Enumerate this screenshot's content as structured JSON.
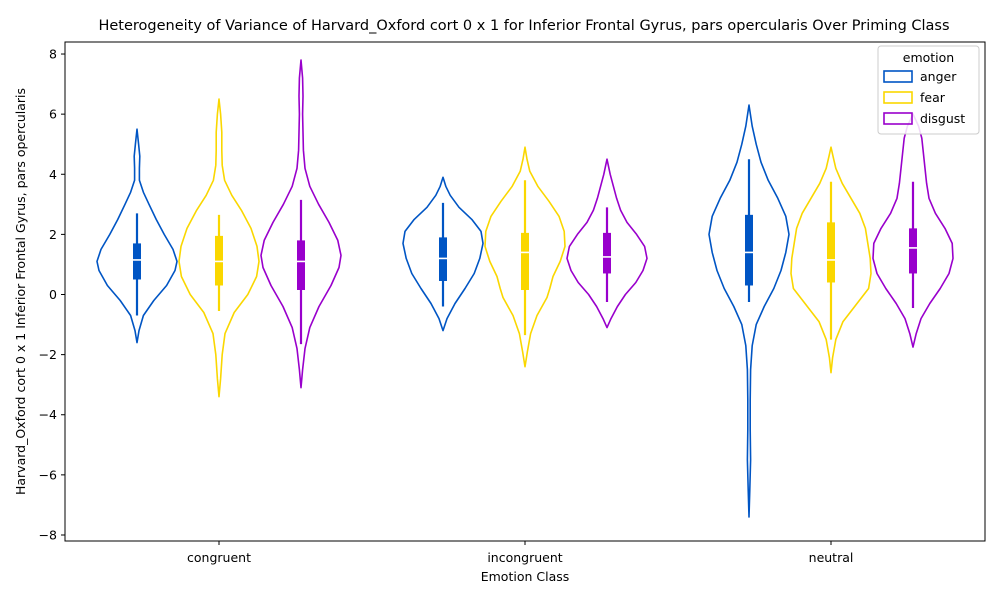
{
  "chart_data": {
    "type": "violin",
    "title": "Heterogeneity of Variance of Harvard_Oxford cort 0 x 1 for Inferior Frontal Gyrus, pars opercularis Over Priming Class",
    "xlabel": "Emotion Class",
    "ylabel": "Harvard_Oxford cort 0 x 1 Inferior Frontal Gyrus, pars opercularis",
    "ylim": [
      -8.2,
      8.4
    ],
    "yticks": [
      -8,
      -6,
      -4,
      -2,
      0,
      2,
      4,
      6,
      8
    ],
    "ytick_labels": [
      "−8",
      "−6",
      "−4",
      "−2",
      "0",
      "2",
      "4",
      "6",
      "8"
    ],
    "categories": [
      "congruent",
      "incongruent",
      "neutral"
    ],
    "legend": {
      "title": "emotion",
      "position": "top-right"
    },
    "grid": false,
    "series": [
      {
        "name": "anger",
        "color": "#0055c4",
        "violins": [
          {
            "min": -1.6,
            "max": 5.5,
            "q1": 0.5,
            "median": 1.15,
            "q3": 1.7,
            "whisker_low": -0.7,
            "whisker_high": 2.7,
            "profile": [
              [
                -1.6,
                0.0
              ],
              [
                -1.2,
                0.05
              ],
              [
                -0.7,
                0.16
              ],
              [
                -0.2,
                0.42
              ],
              [
                0.3,
                0.74
              ],
              [
                0.8,
                0.95
              ],
              [
                1.1,
                1.0
              ],
              [
                1.5,
                0.9
              ],
              [
                2.0,
                0.68
              ],
              [
                2.5,
                0.48
              ],
              [
                3.0,
                0.3
              ],
              [
                3.4,
                0.16
              ],
              [
                3.8,
                0.06
              ],
              [
                4.2,
                0.06
              ],
              [
                4.6,
                0.07
              ],
              [
                5.0,
                0.04
              ],
              [
                5.5,
                0.0
              ]
            ]
          },
          {
            "min": -1.2,
            "max": 3.9,
            "q1": 0.45,
            "median": 1.2,
            "q3": 1.9,
            "whisker_low": -0.4,
            "whisker_high": 3.05,
            "profile": [
              [
                -1.2,
                0.0
              ],
              [
                -0.8,
                0.1
              ],
              [
                -0.3,
                0.3
              ],
              [
                0.2,
                0.55
              ],
              [
                0.7,
                0.78
              ],
              [
                1.2,
                0.92
              ],
              [
                1.7,
                1.0
              ],
              [
                2.1,
                0.95
              ],
              [
                2.5,
                0.72
              ],
              [
                2.9,
                0.4
              ],
              [
                3.3,
                0.18
              ],
              [
                3.6,
                0.07
              ],
              [
                3.9,
                0.0
              ]
            ]
          },
          {
            "min": -7.4,
            "max": 6.3,
            "q1": 0.3,
            "median": 1.4,
            "q3": 2.65,
            "whisker_low": -0.25,
            "whisker_high": 4.5,
            "profile": [
              [
                -7.4,
                0.0
              ],
              [
                -6.5,
                0.02
              ],
              [
                -5.5,
                0.04
              ],
              [
                -4.5,
                0.03
              ],
              [
                -3.5,
                0.03
              ],
              [
                -2.5,
                0.04
              ],
              [
                -1.7,
                0.08
              ],
              [
                -1.0,
                0.18
              ],
              [
                -0.4,
                0.38
              ],
              [
                0.2,
                0.62
              ],
              [
                0.8,
                0.8
              ],
              [
                1.4,
                0.92
              ],
              [
                2.0,
                1.0
              ],
              [
                2.6,
                0.92
              ],
              [
                3.2,
                0.72
              ],
              [
                3.8,
                0.48
              ],
              [
                4.4,
                0.3
              ],
              [
                5.0,
                0.18
              ],
              [
                5.6,
                0.08
              ],
              [
                6.3,
                0.0
              ]
            ]
          }
        ]
      },
      {
        "name": "fear",
        "color": "#fad700",
        "violins": [
          {
            "min": -3.4,
            "max": 6.5,
            "q1": 0.3,
            "median": 1.1,
            "q3": 1.95,
            "whisker_low": -0.55,
            "whisker_high": 2.65,
            "profile": [
              [
                -3.4,
                0.0
              ],
              [
                -2.8,
                0.04
              ],
              [
                -2.0,
                0.08
              ],
              [
                -1.3,
                0.15
              ],
              [
                -0.6,
                0.38
              ],
              [
                0.0,
                0.72
              ],
              [
                0.6,
                0.94
              ],
              [
                1.1,
                1.0
              ],
              [
                1.6,
                0.95
              ],
              [
                2.2,
                0.8
              ],
              [
                2.8,
                0.56
              ],
              [
                3.3,
                0.32
              ],
              [
                3.8,
                0.14
              ],
              [
                4.3,
                0.08
              ],
              [
                4.8,
                0.07
              ],
              [
                5.4,
                0.07
              ],
              [
                6.0,
                0.04
              ],
              [
                6.5,
                0.0
              ]
            ]
          },
          {
            "min": -2.4,
            "max": 4.9,
            "q1": 0.15,
            "median": 1.4,
            "q3": 2.05,
            "whisker_low": -1.35,
            "whisker_high": 3.8,
            "profile": [
              [
                -2.4,
                0.0
              ],
              [
                -1.9,
                0.06
              ],
              [
                -1.3,
                0.14
              ],
              [
                -0.7,
                0.3
              ],
              [
                -0.1,
                0.55
              ],
              [
                0.2,
                0.62
              ],
              [
                0.6,
                0.7
              ],
              [
                1.1,
                0.88
              ],
              [
                1.6,
                1.0
              ],
              [
                2.1,
                0.98
              ],
              [
                2.6,
                0.85
              ],
              [
                3.1,
                0.6
              ],
              [
                3.6,
                0.32
              ],
              [
                4.1,
                0.12
              ],
              [
                4.5,
                0.05
              ],
              [
                4.9,
                0.0
              ]
            ]
          },
          {
            "min": -2.6,
            "max": 4.9,
            "q1": 0.4,
            "median": 1.15,
            "q3": 2.4,
            "whisker_low": -1.5,
            "whisker_high": 3.75,
            "profile": [
              [
                -2.6,
                0.0
              ],
              [
                -2.1,
                0.04
              ],
              [
                -1.5,
                0.12
              ],
              [
                -0.9,
                0.3
              ],
              [
                -0.3,
                0.65
              ],
              [
                0.2,
                0.94
              ],
              [
                0.7,
                1.0
              ],
              [
                1.2,
                0.98
              ],
              [
                1.7,
                0.92
              ],
              [
                2.2,
                0.86
              ],
              [
                2.7,
                0.72
              ],
              [
                3.2,
                0.5
              ],
              [
                3.7,
                0.28
              ],
              [
                4.2,
                0.12
              ],
              [
                4.6,
                0.05
              ],
              [
                4.9,
                0.0
              ]
            ]
          }
        ]
      },
      {
        "name": "disgust",
        "color": "#9900cc",
        "violins": [
          {
            "min": -3.1,
            "max": 7.8,
            "q1": 0.15,
            "median": 1.1,
            "q3": 1.8,
            "whisker_low": -1.65,
            "whisker_high": 3.15,
            "profile": [
              [
                -3.1,
                0.0
              ],
              [
                -2.5,
                0.04
              ],
              [
                -1.8,
                0.1
              ],
              [
                -1.1,
                0.22
              ],
              [
                -0.4,
                0.45
              ],
              [
                0.3,
                0.75
              ],
              [
                0.9,
                0.95
              ],
              [
                1.3,
                1.0
              ],
              [
                1.8,
                0.92
              ],
              [
                2.4,
                0.7
              ],
              [
                3.0,
                0.44
              ],
              [
                3.6,
                0.22
              ],
              [
                4.2,
                0.1
              ],
              [
                4.8,
                0.06
              ],
              [
                5.4,
                0.05
              ],
              [
                6.0,
                0.04
              ],
              [
                6.6,
                0.05
              ],
              [
                7.2,
                0.04
              ],
              [
                7.8,
                0.0
              ]
            ]
          },
          {
            "min": -1.1,
            "max": 4.5,
            "q1": 0.7,
            "median": 1.25,
            "q3": 2.05,
            "whisker_low": -0.25,
            "whisker_high": 2.9,
            "profile": [
              [
                -1.1,
                0.0
              ],
              [
                -0.8,
                0.1
              ],
              [
                -0.4,
                0.26
              ],
              [
                0.0,
                0.46
              ],
              [
                0.4,
                0.72
              ],
              [
                0.8,
                0.9
              ],
              [
                1.2,
                1.0
              ],
              [
                1.6,
                0.94
              ],
              [
                2.0,
                0.74
              ],
              [
                2.4,
                0.5
              ],
              [
                2.8,
                0.34
              ],
              [
                3.2,
                0.24
              ],
              [
                3.6,
                0.16
              ],
              [
                4.0,
                0.08
              ],
              [
                4.5,
                0.0
              ]
            ]
          },
          {
            "min": -1.75,
            "max": 6.0,
            "q1": 0.7,
            "median": 1.55,
            "q3": 2.2,
            "whisker_low": -0.45,
            "whisker_high": 3.75,
            "profile": [
              [
                -1.75,
                0.0
              ],
              [
                -1.3,
                0.08
              ],
              [
                -0.8,
                0.2
              ],
              [
                -0.3,
                0.42
              ],
              [
                0.2,
                0.68
              ],
              [
                0.7,
                0.9
              ],
              [
                1.2,
                1.0
              ],
              [
                1.7,
                0.98
              ],
              [
                2.2,
                0.8
              ],
              [
                2.7,
                0.56
              ],
              [
                3.2,
                0.4
              ],
              [
                3.7,
                0.34
              ],
              [
                4.2,
                0.3
              ],
              [
                4.7,
                0.26
              ],
              [
                5.2,
                0.22
              ],
              [
                5.6,
                0.14
              ],
              [
                6.0,
                0.0
              ]
            ]
          }
        ]
      }
    ]
  }
}
